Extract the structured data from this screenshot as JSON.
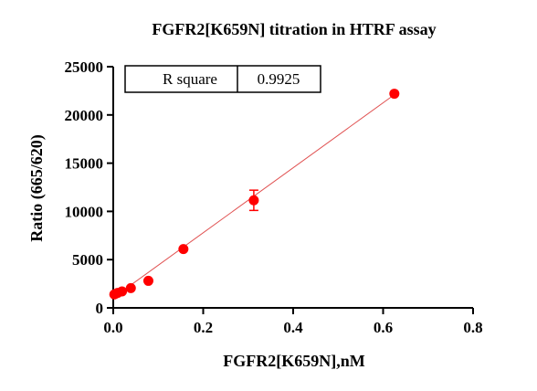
{
  "chart_data": {
    "type": "scatter",
    "title": "FGFR2[K659N] titration in HTRF assay",
    "xlabel": "FGFR2[K659N],nM",
    "ylabel": "Ratio (665/620)",
    "xlim": [
      0,
      0.8
    ],
    "ylim": [
      0,
      25000
    ],
    "xticks": [
      0,
      0.2,
      0.4,
      0.6,
      0.8
    ],
    "xtick_labels": [
      "0.0",
      "0.2",
      "0.4",
      "0.6",
      "0.8"
    ],
    "yticks": [
      0,
      5000,
      10000,
      15000,
      20000,
      25000
    ],
    "ytick_labels": [
      "0",
      "5000",
      "10000",
      "15000",
      "20000",
      "25000"
    ],
    "grid": false,
    "colors": {
      "points": "#ff0000",
      "fit_line": "#e05050",
      "axes": "#000000"
    },
    "points": [
      {
        "x": 0.00244,
        "y": 1400
      },
      {
        "x": 0.00488,
        "y": 1450
      },
      {
        "x": 0.00977,
        "y": 1550
      },
      {
        "x": 0.0195,
        "y": 1700
      },
      {
        "x": 0.0391,
        "y": 2050
      },
      {
        "x": 0.0781,
        "y": 2800
      },
      {
        "x": 0.156,
        "y": 6100
      },
      {
        "x": 0.3125,
        "y": 11150,
        "error": 1050
      },
      {
        "x": 0.625,
        "y": 22200
      }
    ],
    "fit_line": {
      "x": [
        0.0,
        0.625
      ],
      "y": [
        1050,
        22100
      ]
    },
    "stats_table": {
      "label": "R square",
      "value": "0.9925"
    }
  }
}
